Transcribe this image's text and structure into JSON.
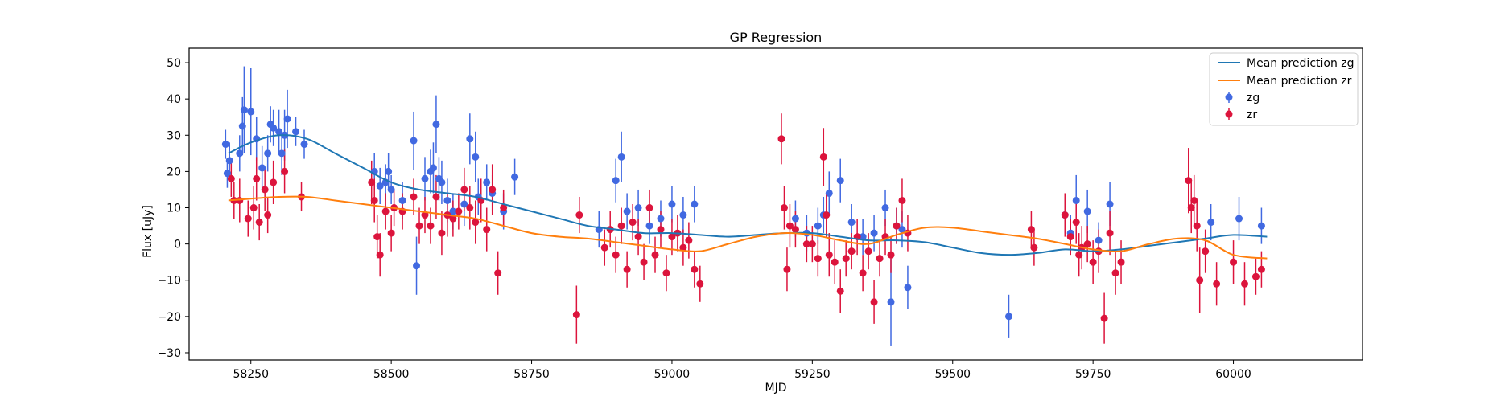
{
  "chart_data": {
    "type": "scatter",
    "title": "GP Regression",
    "xlabel": "MJD",
    "ylabel": "Flux [uJy]",
    "xlim": [
      58140,
      60230
    ],
    "ylim": [
      -32,
      54
    ],
    "xticks": [
      58250,
      58500,
      58750,
      59000,
      59250,
      59500,
      59750,
      60000
    ],
    "yticks": [
      -30,
      -20,
      -10,
      0,
      10,
      20,
      30,
      40,
      50
    ],
    "grid": false,
    "legend": "top-right",
    "legend_entries": [
      "Mean prediction zg",
      "Mean prediction zr",
      "zg",
      "zr"
    ],
    "colors": {
      "zg_line": "#1f77b4",
      "zr_line": "#ff7f0e",
      "zg_points": "#4169e1",
      "zr_points": "#dc143c"
    },
    "series": [
      {
        "name": "Mean prediction zg",
        "kind": "line",
        "x": [
          58210,
          58250,
          58300,
          58350,
          58400,
          58450,
          58500,
          58550,
          58600,
          58650,
          58700,
          58750,
          58800,
          58850,
          58900,
          58950,
          59000,
          59050,
          59100,
          59150,
          59200,
          59250,
          59300,
          59350,
          59400,
          59450,
          59500,
          59550,
          59600,
          59650,
          59700,
          59750,
          59800,
          59850,
          59900,
          59950,
          60000,
          60060
        ],
        "y": [
          25,
          28,
          30,
          29,
          25,
          21,
          17,
          15,
          14,
          13,
          11,
          9,
          7,
          5,
          4,
          3,
          3,
          2.5,
          2,
          2.5,
          3,
          3,
          2,
          1,
          1,
          0.5,
          -1,
          -2.5,
          -3,
          -2.5,
          -1.5,
          -2,
          -1.5,
          -0.5,
          0.5,
          1.5,
          2.5,
          2
        ]
      },
      {
        "name": "Mean prediction zr",
        "kind": "line",
        "x": [
          58210,
          58250,
          58300,
          58350,
          58400,
          58450,
          58500,
          58550,
          58600,
          58650,
          58700,
          58750,
          58800,
          58850,
          58900,
          58950,
          59000,
          59050,
          59100,
          59150,
          59200,
          59250,
          59300,
          59350,
          59400,
          59450,
          59500,
          59550,
          59600,
          59650,
          59700,
          59750,
          59800,
          59850,
          59900,
          59950,
          60000,
          60060
        ],
        "y": [
          12,
          12.5,
          13,
          13,
          12,
          11,
          10,
          9,
          8,
          7,
          5,
          3,
          2,
          1.5,
          0.5,
          -0.5,
          -1.5,
          -2,
          0,
          2,
          3,
          2.5,
          1,
          0,
          2.5,
          4.5,
          4.5,
          3.5,
          2.5,
          1.5,
          0,
          -1.5,
          -2,
          0,
          1.5,
          1,
          -3,
          -4
        ]
      },
      {
        "name": "zg",
        "kind": "points",
        "x": [
          58205,
          58208,
          58212,
          58230,
          58235,
          58238,
          58250,
          58260,
          58270,
          58280,
          58285,
          58290,
          58300,
          58305,
          58310,
          58315,
          58330,
          58345,
          58470,
          58480,
          58490,
          58495,
          58500,
          58520,
          58540,
          58545,
          58560,
          58570,
          58575,
          58580,
          58585,
          58590,
          58600,
          58610,
          58630,
          58640,
          58650,
          58655,
          58670,
          58680,
          58700,
          58720,
          58870,
          58900,
          58910,
          58920,
          58940,
          58960,
          58980,
          59000,
          59020,
          59040,
          59220,
          59240,
          59260,
          59270,
          59280,
          59300,
          59320,
          59340,
          59360,
          59380,
          59390,
          59400,
          59410,
          59420,
          59600,
          59700,
          59710,
          59720,
          59740,
          59760,
          59780,
          59960,
          60010,
          60050
        ],
        "y": [
          27.5,
          19.5,
          23,
          25,
          32.5,
          37,
          36.5,
          29,
          21,
          25,
          33,
          32,
          31,
          25,
          30,
          34.5,
          31,
          27.5,
          20,
          16,
          17,
          20,
          15,
          12,
          28.5,
          -6,
          18,
          20,
          21,
          33,
          18,
          17,
          12,
          9,
          11,
          29,
          24,
          13,
          17,
          14,
          9,
          18.5,
          4,
          17.5,
          24,
          9,
          10,
          5,
          7,
          11,
          8,
          11,
          7,
          3,
          5,
          8,
          14,
          17.5,
          6,
          2,
          3,
          10,
          -16,
          5,
          4,
          -12,
          -20,
          8,
          3,
          12,
          9,
          1,
          11,
          6,
          7,
          5
        ],
        "err": [
          4,
          4,
          5,
          5,
          8,
          12,
          12,
          6,
          6,
          5,
          5,
          5,
          6,
          6,
          7,
          8,
          4,
          4,
          5,
          5,
          5,
          5,
          4,
          5,
          8,
          8,
          6,
          6,
          7,
          8,
          6,
          6,
          6,
          5,
          6,
          7,
          7,
          5,
          5,
          5,
          5,
          5,
          5,
          6,
          7,
          5,
          5,
          5,
          5,
          5,
          5,
          5,
          5,
          5,
          5,
          5,
          6,
          6,
          5,
          5,
          5,
          5,
          12,
          5,
          5,
          6,
          6,
          5,
          5,
          7,
          6,
          5,
          6,
          5,
          6,
          5
        ]
      },
      {
        "name": "zr",
        "kind": "points",
        "x": [
          58215,
          58220,
          58230,
          58245,
          58255,
          58260,
          58265,
          58275,
          58280,
          58290,
          58310,
          58340,
          58465,
          58470,
          58475,
          58480,
          58490,
          58500,
          58505,
          58520,
          58540,
          58550,
          58560,
          58570,
          58580,
          58590,
          58600,
          58610,
          58620,
          58630,
          58640,
          58650,
          58660,
          58670,
          58680,
          58690,
          58700,
          58830,
          58835,
          58880,
          58890,
          58900,
          58910,
          58920,
          58930,
          58940,
          58950,
          58960,
          58970,
          58980,
          58990,
          59000,
          59010,
          59020,
          59030,
          59040,
          59050,
          59195,
          59200,
          59205,
          59210,
          59220,
          59240,
          59250,
          59260,
          59270,
          59275,
          59280,
          59290,
          59300,
          59310,
          59320,
          59330,
          59340,
          59350,
          59360,
          59370,
          59380,
          59390,
          59400,
          59410,
          59420,
          59640,
          59645,
          59700,
          59710,
          59720,
          59725,
          59730,
          59740,
          59750,
          59760,
          59770,
          59780,
          59790,
          59800,
          59920,
          59925,
          59930,
          59935,
          59940,
          59950,
          59970,
          60000,
          60020,
          60040,
          60050
        ],
        "y": [
          18,
          12,
          12,
          7,
          10,
          18,
          6,
          15,
          8,
          17,
          20,
          13,
          17,
          12,
          2,
          -3,
          9,
          3,
          10,
          9,
          13,
          5,
          8,
          5,
          13,
          3,
          8,
          7,
          9,
          15,
          10,
          6,
          12,
          4,
          15,
          -8,
          10,
          -19.5,
          8,
          -1,
          4,
          -3,
          5,
          -7,
          6,
          2,
          -5,
          10,
          -3,
          4,
          -8,
          2,
          3,
          -1,
          1,
          -7,
          -11,
          29,
          10,
          -7,
          5,
          4,
          0,
          0,
          -4,
          24,
          8,
          -3,
          -5,
          -13,
          -4,
          -2,
          2,
          -8,
          -2,
          -16,
          -4,
          2,
          -3,
          5,
          12,
          3,
          4,
          -1,
          8,
          2,
          6,
          -3,
          -1,
          0,
          -5,
          -2,
          -20.5,
          3,
          -8,
          -5,
          17.5,
          10,
          12,
          5,
          -10,
          -2,
          -11,
          -5,
          -11,
          -9,
          -7
        ],
        "err": [
          5,
          5,
          6,
          5,
          6,
          6,
          5,
          6,
          5,
          6,
          6,
          4,
          6,
          6,
          6,
          6,
          5,
          5,
          5,
          5,
          5,
          5,
          5,
          5,
          6,
          6,
          6,
          5,
          5,
          6,
          6,
          6,
          6,
          6,
          7,
          6,
          5,
          8,
          5,
          5,
          5,
          5,
          5,
          5,
          5,
          5,
          5,
          5,
          5,
          5,
          5,
          5,
          5,
          5,
          5,
          5,
          5,
          7,
          6,
          6,
          6,
          5,
          5,
          5,
          5,
          8,
          6,
          6,
          6,
          6,
          5,
          5,
          5,
          5,
          5,
          6,
          5,
          5,
          5,
          5,
          6,
          5,
          5,
          5,
          6,
          5,
          6,
          6,
          6,
          5,
          6,
          6,
          7,
          6,
          6,
          6,
          9,
          7,
          7,
          7,
          9,
          6,
          6,
          6,
          6,
          5,
          5
        ]
      }
    ]
  }
}
